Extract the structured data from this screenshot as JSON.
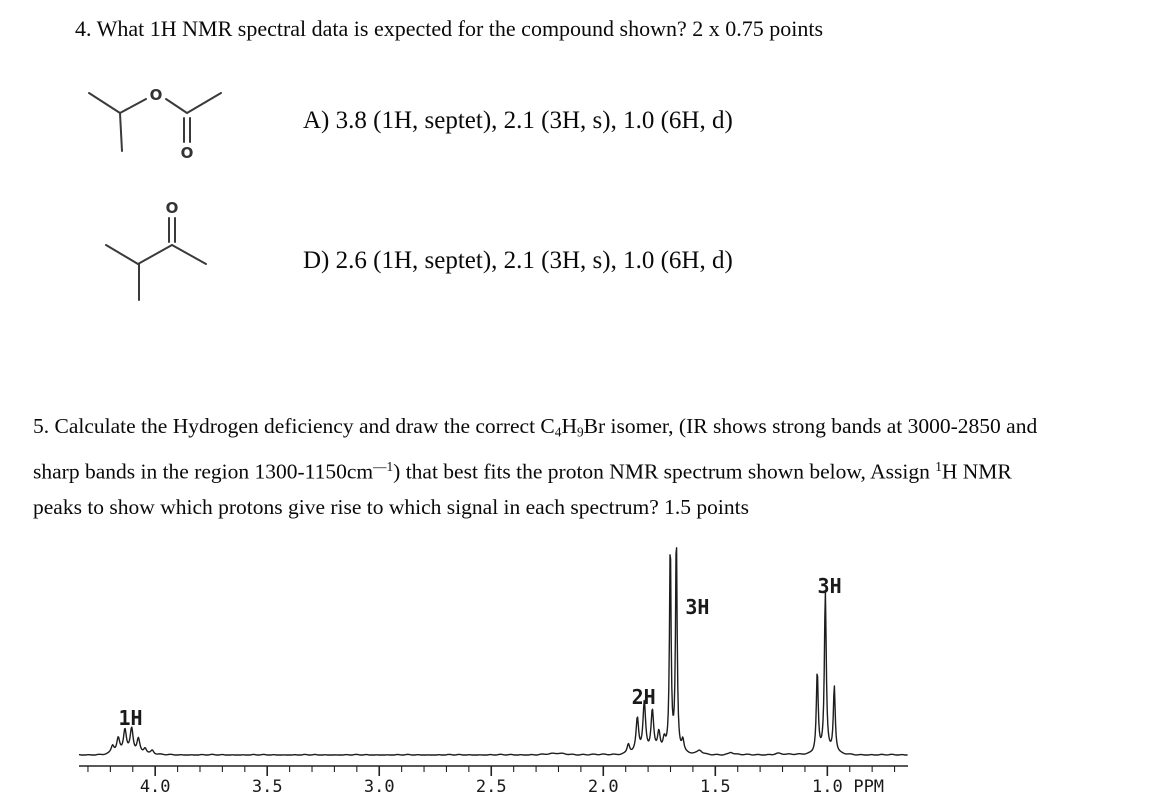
{
  "question4": {
    "text": "4. What 1H NMR spectral data is expected for the compound shown? 2 x 0.75 points",
    "option_a": "A) 3.8 (1H, septet), 2.1 (3H, s), 1.0 (6H, d)",
    "option_d": "D) 2.6 (1H, septet), 2.1 (3H, s), 1.0 (6H, d)"
  },
  "structures": {
    "s1": {
      "name": "isopropyl acetate skeletal structure",
      "o_ester": "O",
      "o_carbonyl": "O"
    },
    "s2": {
      "name": "3-methyl-2-butanone skeletal structure",
      "o_carbonyl": "O"
    }
  },
  "question5": {
    "line1": [
      {
        "t": "5. Calculate the Hydrogen deficiency and draw the correct C"
      },
      {
        "t": "4",
        "s": "sub"
      },
      {
        "t": "H"
      },
      {
        "t": "9",
        "s": "sub"
      },
      {
        "t": "Br isomer, (IR shows strong bands at 3000-2850 and"
      }
    ],
    "line2": [
      {
        "t": "sharp bands in the region 1300-1150cm"
      },
      {
        "t": "—1",
        "s": "sup"
      },
      {
        "t": ") that best fits the proton NMR spectrum shown below, Assign "
      },
      {
        "t": "1",
        "s": "sup"
      },
      {
        "t": "H NMR"
      }
    ],
    "line3": [
      {
        "t": "peaks to show which protons give rise to which signal in each spectrum? 1.5 points"
      }
    ]
  },
  "chart_data": {
    "type": "line",
    "title": "1H NMR spectrum of the C4H9Br isomer (2-bromobutane pattern)",
    "xlabel": "PPM",
    "x_range": [
      4.34,
      0.64
    ],
    "x_ticks": [
      4.0,
      3.5,
      3.0,
      2.5,
      2.0,
      1.5,
      1.0
    ],
    "x_tick_labels": [
      "4.0",
      "3.5",
      "3.0",
      "2.5",
      "2.0",
      "1.5",
      "1.0"
    ],
    "x_unit_label": "PPM",
    "minor_tick_step": 0.1,
    "grid": false,
    "y_axis": "relative intensity (peak line heights given in px above baseline)",
    "peaks": [
      {
        "label": "1H",
        "center_ppm": 4.11,
        "multiplicity": "sextet",
        "lines": [
          [
            4.19,
            8,
            0.008
          ],
          [
            4.165,
            15,
            0.008
          ],
          [
            4.135,
            24,
            0.008
          ],
          [
            4.105,
            25,
            0.008
          ],
          [
            4.075,
            15,
            0.008
          ],
          [
            4.045,
            6,
            0.008
          ],
          [
            4.013,
            4,
            0.008
          ]
        ]
      },
      {
        "label": "2H",
        "center_ppm": 1.82,
        "multiplicity": "multiplet",
        "lines": [
          [
            1.888,
            10,
            0.007
          ],
          [
            1.848,
            35,
            0.007
          ],
          [
            1.817,
            50,
            0.007
          ],
          [
            1.781,
            42,
            0.007
          ],
          [
            1.752,
            20,
            0.007
          ],
          [
            1.728,
            12,
            0.007
          ]
        ]
      },
      {
        "label": "3H",
        "center_ppm": 1.69,
        "multiplicity": "doublet",
        "lines": [
          [
            1.701,
            211,
            0.0042
          ],
          [
            1.674,
            218,
            0.0042
          ],
          [
            1.645,
            12,
            0.006
          ]
        ]
      },
      {
        "label": "3H",
        "center_ppm": 1.01,
        "multiplicity": "triplet",
        "lines": [
          [
            1.045,
            82,
            0.005
          ],
          [
            1.009,
            162,
            0.005
          ],
          [
            0.969,
            67,
            0.005
          ]
        ]
      }
    ],
    "impurity_bumps": [
      [
        2.2,
        1.5,
        0.05
      ],
      [
        1.57,
        4,
        0.012
      ],
      [
        1.43,
        2.5,
        0.012
      ],
      [
        1.22,
        1.5,
        0.02
      ]
    ],
    "annotations": [
      {
        "text": "1H",
        "ppm": 4.11,
        "y": 205
      },
      {
        "text": "2H",
        "ppm": 1.82,
        "y": 184
      },
      {
        "text": "3H",
        "ppm": 1.58,
        "y": 94
      },
      {
        "text": "3H",
        "ppm": 0.99,
        "y": 73
      }
    ]
  }
}
